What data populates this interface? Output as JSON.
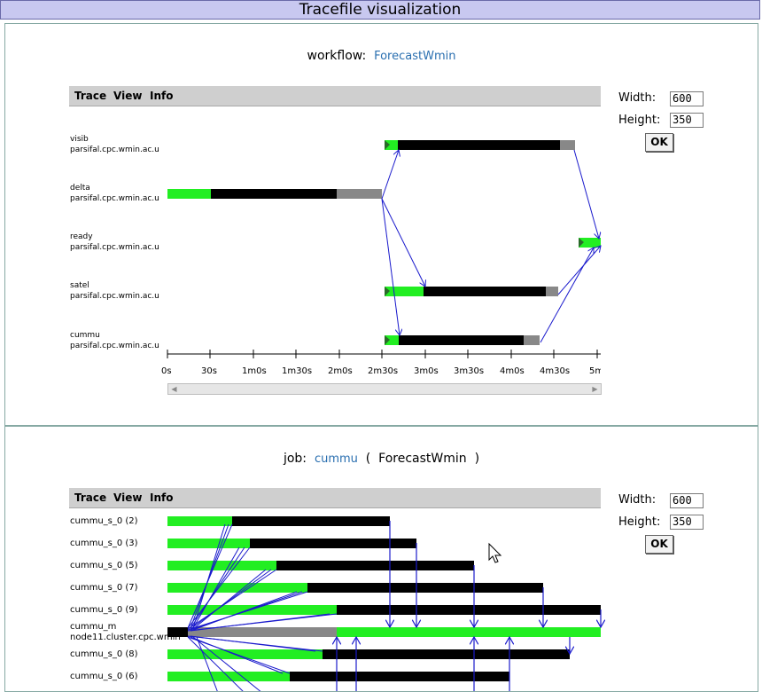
{
  "title": "Tracefile visualization",
  "menu": {
    "trace": "Trace",
    "view": "View",
    "info": "Info"
  },
  "workflow_panel": {
    "label": "workflow:",
    "name": "ForecastWmin",
    "width_label": "Width:",
    "width_value": "600",
    "height_label": "Height:",
    "height_value": "350",
    "ok_label": "OK",
    "rows": [
      {
        "job": "visib",
        "host": "parsifal.cpc.wmin.ac.u"
      },
      {
        "job": "delta",
        "host": "parsifal.cpc.wmin.ac.u"
      },
      {
        "job": "ready",
        "host": "parsifal.cpc.wmin.ac.u"
      },
      {
        "job": "satel",
        "host": "parsifal.cpc.wmin.ac.u"
      },
      {
        "job": "cummu",
        "host": "parsifal.cpc.wmin.ac.u"
      }
    ],
    "ticks": [
      "0s",
      "30s",
      "1m0s",
      "1m30s",
      "2m0s",
      "2m30s",
      "3m0s",
      "3m30s",
      "4m0s",
      "4m30s",
      "5m"
    ],
    "scroll_left": "◀",
    "scroll_right": "▶"
  },
  "job_panel": {
    "label": "job:",
    "name": "cummu",
    "paren_open": "(",
    "workflow": "ForecastWmin",
    "paren_close": ")",
    "width_label": "Width:",
    "width_value": "600",
    "height_label": "Height:",
    "height_value": "350",
    "ok_label": "OK",
    "rows": [
      {
        "label": "cummu_s_0 (2)"
      },
      {
        "label": "cummu_s_0 (3)"
      },
      {
        "label": "cummu_s_0 (5)"
      },
      {
        "label": "cummu_s_0 (7)"
      },
      {
        "label": "cummu_s_0 (9)"
      },
      {
        "label": "cummu_m",
        "host": "node11.cluster.cpc.wmin"
      },
      {
        "label": "cummu_s_0 (8)"
      },
      {
        "label": "cummu_s_0 (6)"
      }
    ]
  },
  "colors": {
    "running": "#22ee22",
    "busy": "#000000",
    "idle": "#888888",
    "arrow": "#1a1acc"
  }
}
